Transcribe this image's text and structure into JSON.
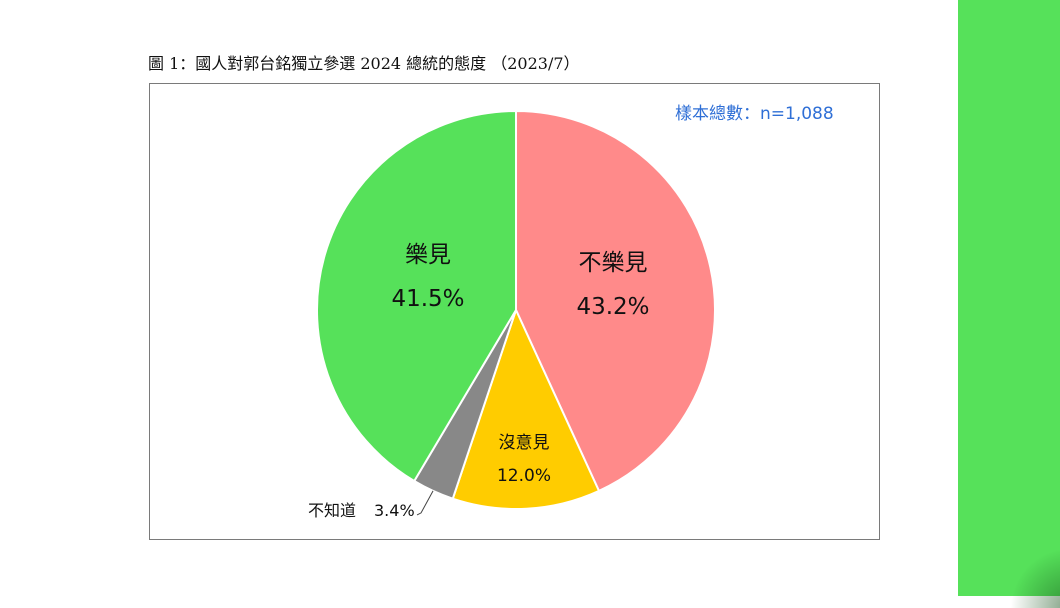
{
  "figure_title": "圖 1：國人對郭台銘獨立參選 2024 總統的態度 （2023/7）",
  "sample_note": "樣本總數：n=1,088",
  "chart_data": {
    "type": "pie",
    "title": "圖 1：國人對郭台銘獨立參選 2024 總統的態度 （2023/7）",
    "slices": [
      {
        "label": "不樂見",
        "value": 43.2,
        "value_label": "43.2%",
        "color": "#ff8a8a"
      },
      {
        "label": "沒意見",
        "value": 12.0,
        "value_label": "12.0%",
        "color": "#ffcc00"
      },
      {
        "label": "不知道",
        "value": 3.4,
        "value_label": "3.4%",
        "color": "#888888"
      },
      {
        "label": "樂見",
        "value": 41.5,
        "value_label": "41.5%",
        "color": "#56e15a"
      }
    ]
  },
  "colors": {
    "side_bar": "#56e15a",
    "sample_note": "#2f6fd6"
  }
}
